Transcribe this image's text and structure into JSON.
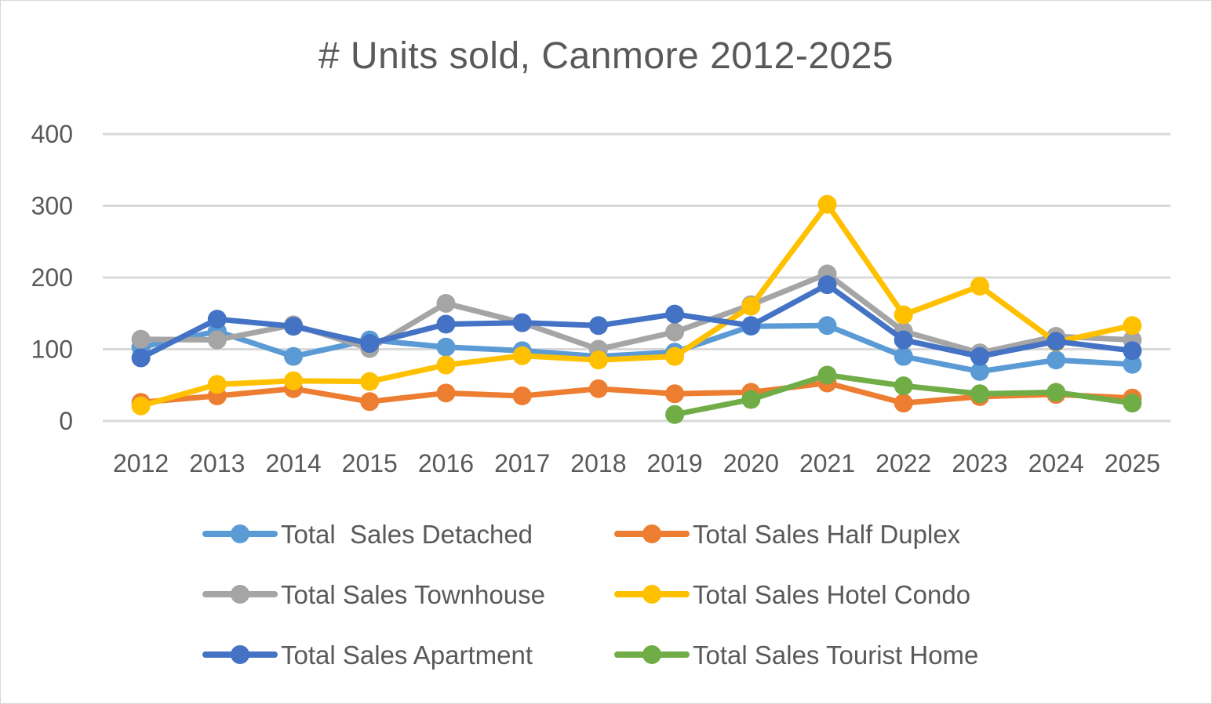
{
  "chart_data": {
    "type": "line",
    "title": "# Units sold, Canmore 2012-2025",
    "xlabel": "",
    "ylabel": "",
    "ylim": [
      0,
      400
    ],
    "yticks": [
      "0",
      "100",
      "200",
      "300",
      "400"
    ],
    "ytick_values": [
      0,
      100,
      200,
      300,
      400
    ],
    "grid": true,
    "legend_position": "bottom",
    "categories": [
      "2012",
      "2013",
      "2014",
      "2015",
      "2016",
      "2017",
      "2018",
      "2019",
      "2020",
      "2021",
      "2022",
      "2023",
      "2024",
      "2025"
    ],
    "series": [
      {
        "name": "Total  Sales Detached",
        "color": "#5B9BD5",
        "values": [
          103,
          125,
          90,
          113,
          103,
          98,
          90,
          96,
          132,
          133,
          90,
          69,
          85,
          79
        ]
      },
      {
        "name": "Total Sales Half Duplex",
        "color": "#ED7D31",
        "values": [
          26,
          35,
          45,
          27,
          39,
          35,
          45,
          38,
          40,
          53,
          25,
          34,
          37,
          32
        ]
      },
      {
        "name": "Total Sales Townhouse",
        "color": "#A5A5A5",
        "values": [
          114,
          113,
          134,
          101,
          164,
          137,
          100,
          124,
          162,
          205,
          125,
          95,
          118,
          113
        ]
      },
      {
        "name": "Total Sales Hotel Condo",
        "color": "#FFC000",
        "values": [
          21,
          51,
          56,
          55,
          78,
          91,
          85,
          90,
          160,
          302,
          148,
          188,
          110,
          133
        ]
      },
      {
        "name": "Total Sales Apartment",
        "color": "#4472C4",
        "values": [
          88,
          142,
          132,
          108,
          135,
          137,
          133,
          149,
          133,
          190,
          113,
          90,
          111,
          98
        ]
      },
      {
        "name": "Total Sales Tourist Home",
        "color": "#70AD47",
        "values": [
          null,
          null,
          null,
          null,
          null,
          null,
          null,
          9,
          30,
          64,
          49,
          38,
          40,
          25
        ]
      }
    ]
  }
}
